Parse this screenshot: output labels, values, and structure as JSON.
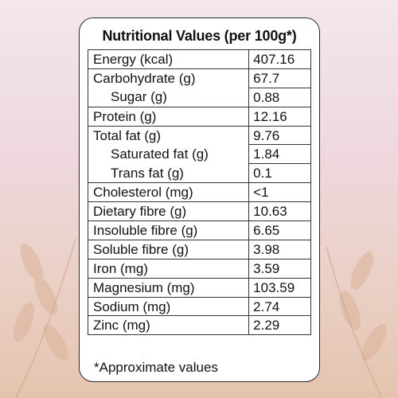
{
  "panel": {
    "title": "Nutritional Values (per 100g*)",
    "footnote": "*Approximate values",
    "rows": [
      {
        "label": "Energy (kcal)",
        "value": "407.16"
      },
      {
        "label": "Carbohydrate (g)",
        "value": "67.7"
      },
      {
        "label": "Sugar (g)",
        "value": "0.88"
      },
      {
        "label": "Protein (g)",
        "value": "12.16"
      },
      {
        "label": "Total fat (g)",
        "value": "9.76"
      },
      {
        "label": "Saturated fat (g)",
        "value": "1.84"
      },
      {
        "label": "Trans fat (g)",
        "value": "0.1"
      },
      {
        "label": "Cholesterol (mg)",
        "value": "<1"
      },
      {
        "label": "Dietary fibre (g)",
        "value": "10.63"
      },
      {
        "label": "Insoluble fibre (g)",
        "value": "6.65"
      },
      {
        "label": "Soluble fibre (g)",
        "value": "3.98"
      },
      {
        "label": "Iron (mg)",
        "value": "3.59"
      },
      {
        "label": "Magnesium (mg)",
        "value": "103.59"
      },
      {
        "label": "Sodium (mg)",
        "value": "2.74"
      },
      {
        "label": "Zinc (mg)",
        "value": "2.29"
      }
    ]
  },
  "colors": {
    "background_top": "#f3e7ec",
    "background_bottom": "#e4c4ae",
    "card": "#ffffff",
    "border": "#333333"
  }
}
